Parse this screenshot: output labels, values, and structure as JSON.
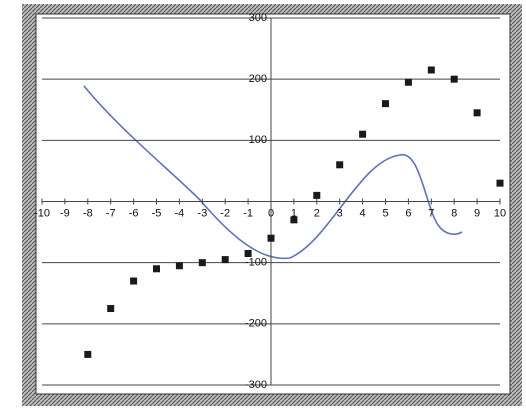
{
  "chart_data": {
    "type": "scatter",
    "x": [
      -8,
      -7,
      -6,
      -5,
      -4,
      -3,
      -2,
      -1,
      0,
      1,
      2,
      3,
      4,
      5,
      6,
      7,
      8,
      9,
      10
    ],
    "values": [
      -250,
      -175,
      -130,
      -110,
      -105,
      -100,
      -95,
      -85,
      -60,
      -30,
      10,
      60,
      110,
      160,
      195,
      215,
      200,
      145,
      30
    ],
    "color": "#1a1a1a",
    "xlim": [
      -10,
      10
    ],
    "xticks": [
      -10,
      -9,
      -8,
      -7,
      -6,
      -5,
      -4,
      -3,
      -2,
      -1,
      0,
      1,
      2,
      3,
      4,
      5,
      6,
      7,
      8,
      9,
      10
    ],
    "ylim": [
      -300,
      300
    ],
    "yticks": [
      -300,
      -200,
      -100,
      100,
      200,
      300
    ],
    "grid": true
  }
}
